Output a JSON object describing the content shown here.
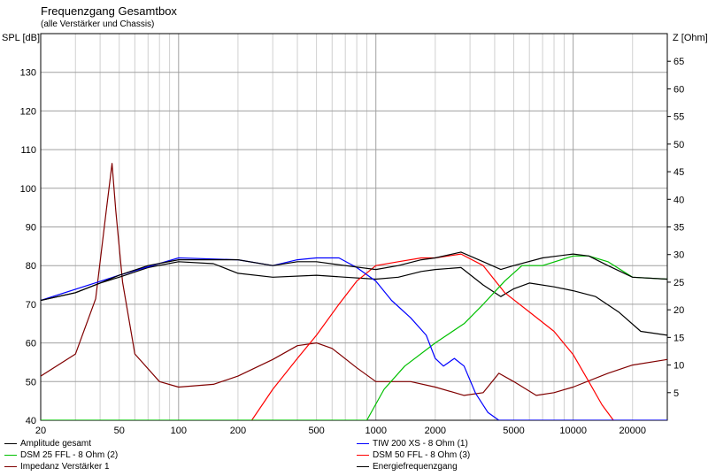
{
  "chart_data": {
    "type": "line",
    "title": "Frequenzgang Gesamtbox",
    "subtitle": "(alle Verstärker und Chassis)",
    "ylabel_left": "SPL [dB]",
    "ylabel_right": "Z [Ohm]",
    "x_scale": "log",
    "xlim": [
      20,
      30000
    ],
    "ylim_left": [
      40,
      140
    ],
    "ylim_right": [
      0,
      70
    ],
    "x_ticks": [
      20,
      50,
      100,
      200,
      500,
      1000,
      2000,
      5000,
      10000,
      20000
    ],
    "x_tick_labels": [
      "20",
      "50",
      "100",
      "200",
      "500",
      "1000",
      "2000",
      "5000",
      "10000",
      "20000"
    ],
    "y_left_ticks": [
      40,
      50,
      60,
      70,
      80,
      90,
      100,
      110,
      120,
      130
    ],
    "y_right_ticks": [
      5,
      10,
      15,
      20,
      25,
      30,
      35,
      40,
      45,
      50,
      55,
      60,
      65
    ],
    "grid": true,
    "legend_position": "bottom",
    "series": [
      {
        "name": "Amplitude gesamt",
        "color": "#000000",
        "axis": "left",
        "x": [
          20,
          30,
          40,
          50,
          70,
          100,
          150,
          200,
          300,
          400,
          500,
          700,
          1000,
          1300,
          1700,
          2000,
          2700,
          3500,
          4300,
          5000,
          7000,
          10000,
          12000,
          15000,
          20000,
          30000
        ],
        "y": [
          71,
          73,
          75.5,
          77.5,
          80,
          81.5,
          81.5,
          81.5,
          80,
          81,
          81,
          80,
          79,
          80,
          81.5,
          82,
          83.5,
          81,
          79,
          80,
          82,
          83,
          82.5,
          80,
          77,
          76.5
        ]
      },
      {
        "name": "TIW 200 XS - 8 Ohm (1)",
        "color": "#0000ff",
        "axis": "left",
        "x": [
          20,
          50,
          100,
          200,
          300,
          400,
          500,
          650,
          800,
          1000,
          1200,
          1500,
          1800,
          2000,
          2200,
          2500,
          2800,
          3200,
          3700,
          4200,
          30000
        ],
        "y": [
          71,
          77.5,
          82,
          81.5,
          80,
          81.5,
          82,
          82,
          79.5,
          76,
          71,
          66.5,
          62,
          56,
          54,
          56,
          54,
          47,
          42,
          40,
          40
        ]
      },
      {
        "name": "DSM 25 FFL - 8 Ohm (2)",
        "color": "#00c000",
        "axis": "left",
        "x": [
          20,
          900,
          1100,
          1400,
          2000,
          2800,
          3500,
          4500,
          5500,
          7000,
          10000,
          12000,
          15000,
          20000,
          30000
        ],
        "y": [
          40,
          40,
          48,
          54,
          60,
          65,
          70,
          76,
          80,
          80,
          82.5,
          82.5,
          81,
          77,
          76.5
        ]
      },
      {
        "name": "DSM 50 FFL - 8 Ohm (3)",
        "color": "#ff0000",
        "axis": "left",
        "x": [
          235,
          300,
          400,
          500,
          650,
          800,
          1000,
          1300,
          1700,
          2000,
          2700,
          3500,
          4500,
          6000,
          8000,
          10000,
          12000,
          14000,
          16000
        ],
        "y": [
          40,
          48,
          56,
          62,
          70,
          76,
          80,
          81,
          82,
          82,
          83,
          80,
          73,
          68,
          63,
          57,
          50,
          44,
          40
        ]
      },
      {
        "name": "Impedanz Verstärker 1",
        "color": "#800000",
        "axis": "right",
        "x": [
          20,
          30,
          38,
          43,
          46,
          48,
          52,
          60,
          80,
          100,
          150,
          200,
          300,
          400,
          500,
          600,
          800,
          1000,
          1500,
          2000,
          2800,
          3500,
          4200,
          5000,
          6500,
          8000,
          10000,
          15000,
          20000,
          30000
        ],
        "y": [
          8,
          12,
          22,
          38,
          46.5,
          38,
          25,
          12,
          7,
          6,
          6.5,
          8,
          11,
          13.5,
          14,
          13,
          9.5,
          7,
          7,
          6,
          4.5,
          5,
          8.5,
          7,
          4.5,
          5,
          6,
          8.5,
          10,
          11
        ]
      },
      {
        "name": "Energiefrequenzgang",
        "color": "#000000",
        "axis": "left",
        "x": [
          20,
          30,
          40,
          50,
          70,
          100,
          150,
          200,
          300,
          500,
          700,
          1000,
          1300,
          1700,
          2000,
          2700,
          3500,
          4300,
          5000,
          6000,
          8000,
          10000,
          13000,
          17000,
          22000,
          30000
        ],
        "y": [
          71,
          73,
          75.5,
          77,
          79.5,
          81,
          80.5,
          78,
          77,
          77.5,
          77,
          76.5,
          77,
          78.5,
          79,
          79.5,
          75,
          72,
          74,
          75.5,
          74.5,
          73.5,
          72,
          68,
          63,
          62
        ]
      }
    ]
  }
}
